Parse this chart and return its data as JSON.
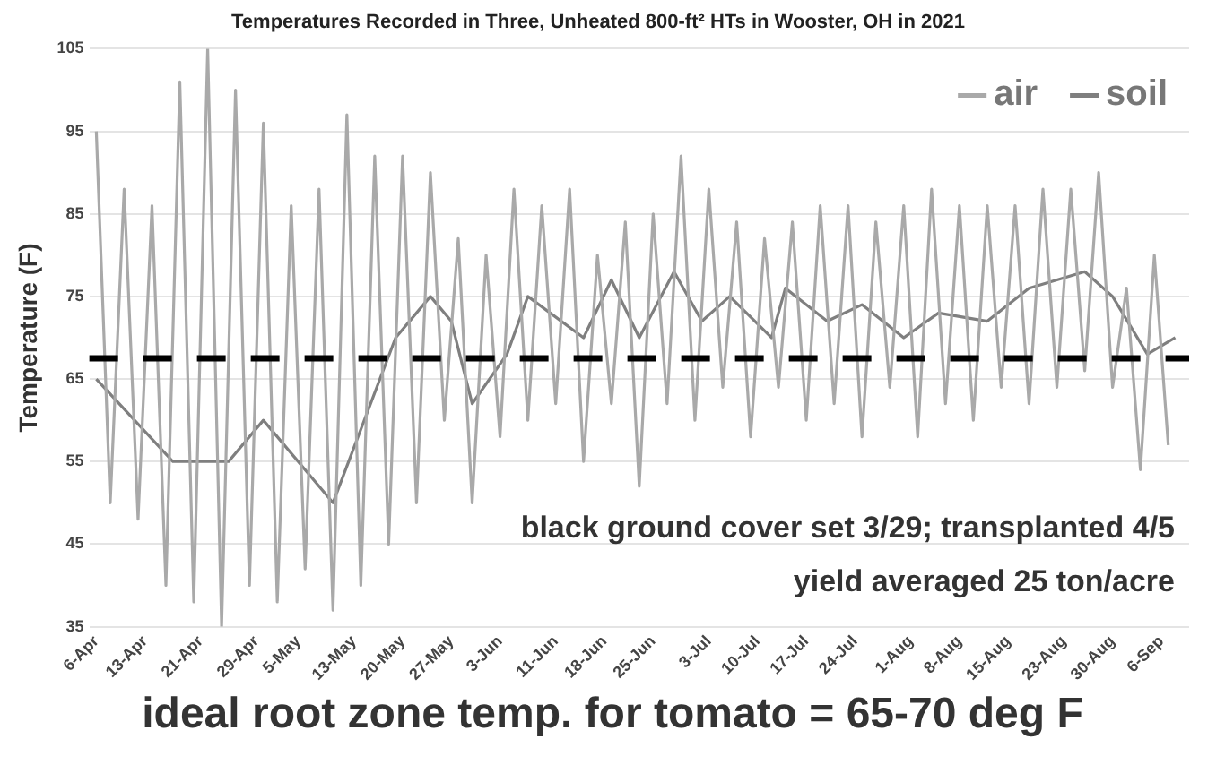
{
  "chart_data": {
    "type": "line",
    "title": "Temperatures Recorded in Three, Unheated 800-ft² HTs in Wooster, OH in 2021",
    "ylabel": "Temperature (F)",
    "series": [
      {
        "name": "air",
        "color": "#a9a9a9",
        "x": [
          "2021-04-06",
          "2021-04-08",
          "2021-04-10",
          "2021-04-12",
          "2021-04-14",
          "2021-04-16",
          "2021-04-18",
          "2021-04-20",
          "2021-04-22",
          "2021-04-24",
          "2021-04-26",
          "2021-04-28",
          "2021-04-30",
          "2021-05-02",
          "2021-05-04",
          "2021-05-06",
          "2021-05-08",
          "2021-05-10",
          "2021-05-12",
          "2021-05-14",
          "2021-05-16",
          "2021-05-18",
          "2021-05-20",
          "2021-05-22",
          "2021-05-24",
          "2021-05-26",
          "2021-05-28",
          "2021-05-30",
          "2021-06-01",
          "2021-06-03",
          "2021-06-05",
          "2021-06-07",
          "2021-06-09",
          "2021-06-11",
          "2021-06-13",
          "2021-06-15",
          "2021-06-17",
          "2021-06-19",
          "2021-06-21",
          "2021-06-23",
          "2021-06-25",
          "2021-06-27",
          "2021-06-29",
          "2021-07-01",
          "2021-07-03",
          "2021-07-05",
          "2021-07-07",
          "2021-07-09",
          "2021-07-11",
          "2021-07-13",
          "2021-07-15",
          "2021-07-17",
          "2021-07-19",
          "2021-07-21",
          "2021-07-23",
          "2021-07-25",
          "2021-07-27",
          "2021-07-29",
          "2021-07-31",
          "2021-08-02",
          "2021-08-04",
          "2021-08-06",
          "2021-08-08",
          "2021-08-10",
          "2021-08-12",
          "2021-08-14",
          "2021-08-16",
          "2021-08-18",
          "2021-08-20",
          "2021-08-22",
          "2021-08-24",
          "2021-08-26",
          "2021-08-28",
          "2021-08-30",
          "2021-09-01",
          "2021-09-03",
          "2021-09-05",
          "2021-09-07"
        ],
        "values": [
          95,
          50,
          88,
          48,
          86,
          40,
          101,
          38,
          105,
          35,
          100,
          40,
          96,
          38,
          86,
          42,
          88,
          37,
          97,
          40,
          92,
          45,
          92,
          50,
          90,
          60,
          82,
          50,
          80,
          58,
          88,
          60,
          86,
          62,
          88,
          55,
          80,
          62,
          84,
          52,
          85,
          62,
          92,
          60,
          88,
          64,
          84,
          58,
          82,
          64,
          84,
          60,
          86,
          62,
          86,
          58,
          84,
          64,
          86,
          58,
          88,
          62,
          86,
          60,
          86,
          64,
          86,
          62,
          88,
          64,
          88,
          66,
          90,
          64,
          76,
          54,
          80,
          57
        ]
      },
      {
        "name": "soil",
        "color": "#7f7f7f",
        "x": [
          "2021-04-06",
          "2021-04-17",
          "2021-04-25",
          "2021-04-30",
          "2021-05-10",
          "2021-05-19",
          "2021-05-24",
          "2021-05-27",
          "2021-05-30",
          "2021-06-04",
          "2021-06-07",
          "2021-06-15",
          "2021-06-19",
          "2021-06-23",
          "2021-06-28",
          "2021-07-02",
          "2021-07-06",
          "2021-07-12",
          "2021-07-14",
          "2021-07-20",
          "2021-07-25",
          "2021-07-31",
          "2021-08-05",
          "2021-08-12",
          "2021-08-18",
          "2021-08-26",
          "2021-08-30",
          "2021-09-04",
          "2021-09-08"
        ],
        "values": [
          65,
          55,
          55,
          60,
          50,
          70,
          75,
          72,
          62,
          68,
          75,
          70,
          77,
          70,
          78,
          72,
          75,
          70,
          76,
          72,
          74,
          70,
          73,
          72,
          76,
          78,
          75,
          68,
          70
        ]
      }
    ],
    "xlim": [
      "2021-04-05",
      "2021-09-10"
    ],
    "xticks": [
      {
        "value": "2021-04-06",
        "label": "6-Apr"
      },
      {
        "value": "2021-04-13",
        "label": "13-Apr"
      },
      {
        "value": "2021-04-21",
        "label": "21-Apr"
      },
      {
        "value": "2021-04-29",
        "label": "29-Apr"
      },
      {
        "value": "2021-05-05",
        "label": "5-May"
      },
      {
        "value": "2021-05-13",
        "label": "13-May"
      },
      {
        "value": "2021-05-20",
        "label": "20-May"
      },
      {
        "value": "2021-05-27",
        "label": "27-May"
      },
      {
        "value": "2021-06-03",
        "label": "3-Jun"
      },
      {
        "value": "2021-06-11",
        "label": "11-Jun"
      },
      {
        "value": "2021-06-18",
        "label": "18-Jun"
      },
      {
        "value": "2021-06-25",
        "label": "25-Jun"
      },
      {
        "value": "2021-07-03",
        "label": "3-Jul"
      },
      {
        "value": "2021-07-10",
        "label": "10-Jul"
      },
      {
        "value": "2021-07-17",
        "label": "17-Jul"
      },
      {
        "value": "2021-07-24",
        "label": "24-Jul"
      },
      {
        "value": "2021-08-01",
        "label": "1-Aug"
      },
      {
        "value": "2021-08-08",
        "label": "8-Aug"
      },
      {
        "value": "2021-08-15",
        "label": "15-Aug"
      },
      {
        "value": "2021-08-23",
        "label": "23-Aug"
      },
      {
        "value": "2021-08-30",
        "label": "30-Aug"
      },
      {
        "value": "2021-09-06",
        "label": "6-Sep"
      }
    ],
    "ylim": [
      35,
      105
    ],
    "yticks": [
      35,
      45,
      55,
      65,
      75,
      85,
      95,
      105
    ],
    "ref_lines": [
      {
        "axis": "y",
        "value": 67.5,
        "color": "#000000",
        "line_style": "dashed"
      }
    ],
    "annotations": [
      "black ground cover set 3/29; transplanted 4/5",
      "yield averaged 25 ton/acre",
      "ideal root zone temp. for tomato = 65-70 deg F"
    ],
    "grid": "y",
    "legend": "top right",
    "marker": "none",
    "line_style": "solid"
  }
}
